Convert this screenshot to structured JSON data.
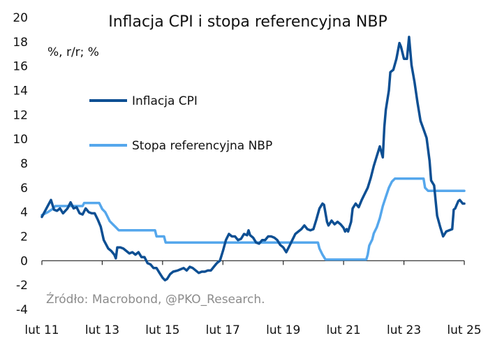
{
  "chart_data": {
    "type": "line",
    "title": "Inflacja CPI i stopa referencyjna NBP",
    "ylabel": "%, r/r; %",
    "xlabel": "",
    "ylim": [
      -4,
      20
    ],
    "yticks": [
      -4,
      -2,
      0,
      2,
      4,
      6,
      8,
      10,
      12,
      14,
      16,
      18,
      20
    ],
    "xlim": [
      2011.0,
      2025.0
    ],
    "xticks": [
      {
        "value": 2011,
        "label": "lut 11"
      },
      {
        "value": 2013,
        "label": "lut 13"
      },
      {
        "value": 2015,
        "label": "lut 15"
      },
      {
        "value": 2017,
        "label": "lut 17"
      },
      {
        "value": 2019,
        "label": "lut 19"
      },
      {
        "value": 2021,
        "label": "lut 21"
      },
      {
        "value": 2023,
        "label": "lut 23"
      },
      {
        "value": 2025,
        "label": "lut 25"
      }
    ],
    "legend": {
      "position": "upper-left"
    },
    "source": "Źródło: Macrobond, @PKO_Research.",
    "series": [
      {
        "name": "Inflacja CPI",
        "color": "#0d4f93",
        "points": [
          [
            2011.0,
            3.6
          ],
          [
            2011.15,
            4.3
          ],
          [
            2011.3,
            5.0
          ],
          [
            2011.4,
            4.2
          ],
          [
            2011.5,
            4.1
          ],
          [
            2011.6,
            4.3
          ],
          [
            2011.7,
            3.9
          ],
          [
            2011.85,
            4.3
          ],
          [
            2011.95,
            4.8
          ],
          [
            2012.05,
            4.3
          ],
          [
            2012.15,
            4.4
          ],
          [
            2012.25,
            3.9
          ],
          [
            2012.35,
            3.8
          ],
          [
            2012.45,
            4.3
          ],
          [
            2012.55,
            4.0
          ],
          [
            2012.65,
            3.9
          ],
          [
            2012.75,
            3.9
          ],
          [
            2012.85,
            3.4
          ],
          [
            2012.95,
            2.8
          ],
          [
            2013.05,
            1.7
          ],
          [
            2013.2,
            1.0
          ],
          [
            2013.3,
            0.8
          ],
          [
            2013.4,
            0.5
          ],
          [
            2013.45,
            0.2
          ],
          [
            2013.5,
            1.1
          ],
          [
            2013.6,
            1.1
          ],
          [
            2013.7,
            1.0
          ],
          [
            2013.8,
            0.8
          ],
          [
            2013.9,
            0.6
          ],
          [
            2014.0,
            0.7
          ],
          [
            2014.1,
            0.5
          ],
          [
            2014.2,
            0.7
          ],
          [
            2014.3,
            0.3
          ],
          [
            2014.4,
            0.3
          ],
          [
            2014.5,
            -0.2
          ],
          [
            2014.6,
            -0.3
          ],
          [
            2014.7,
            -0.6
          ],
          [
            2014.8,
            -0.6
          ],
          [
            2014.9,
            -1.0
          ],
          [
            2015.0,
            -1.4
          ],
          [
            2015.08,
            -1.6
          ],
          [
            2015.15,
            -1.5
          ],
          [
            2015.25,
            -1.1
          ],
          [
            2015.35,
            -0.9
          ],
          [
            2015.5,
            -0.8
          ],
          [
            2015.6,
            -0.7
          ],
          [
            2015.7,
            -0.6
          ],
          [
            2015.8,
            -0.8
          ],
          [
            2015.9,
            -0.5
          ],
          [
            2016.0,
            -0.6
          ],
          [
            2016.1,
            -0.8
          ],
          [
            2016.2,
            -1.0
          ],
          [
            2016.3,
            -0.9
          ],
          [
            2016.4,
            -0.9
          ],
          [
            2016.5,
            -0.8
          ],
          [
            2016.6,
            -0.8
          ],
          [
            2016.7,
            -0.5
          ],
          [
            2016.8,
            -0.2
          ],
          [
            2016.9,
            0.0
          ],
          [
            2017.0,
            0.8
          ],
          [
            2017.1,
            1.7
          ],
          [
            2017.2,
            2.2
          ],
          [
            2017.3,
            2.0
          ],
          [
            2017.4,
            2.0
          ],
          [
            2017.5,
            1.7
          ],
          [
            2017.6,
            1.8
          ],
          [
            2017.7,
            2.2
          ],
          [
            2017.8,
            2.1
          ],
          [
            2017.85,
            2.5
          ],
          [
            2017.9,
            2.1
          ],
          [
            2018.0,
            1.9
          ],
          [
            2018.1,
            1.5
          ],
          [
            2018.2,
            1.4
          ],
          [
            2018.3,
            1.7
          ],
          [
            2018.4,
            1.7
          ],
          [
            2018.5,
            2.0
          ],
          [
            2018.6,
            2.0
          ],
          [
            2018.7,
            1.9
          ],
          [
            2018.8,
            1.7
          ],
          [
            2018.9,
            1.3
          ],
          [
            2019.0,
            1.1
          ],
          [
            2019.1,
            0.7
          ],
          [
            2019.2,
            1.2
          ],
          [
            2019.3,
            1.7
          ],
          [
            2019.4,
            2.2
          ],
          [
            2019.5,
            2.4
          ],
          [
            2019.6,
            2.6
          ],
          [
            2019.7,
            2.9
          ],
          [
            2019.8,
            2.6
          ],
          [
            2019.9,
            2.5
          ],
          [
            2020.0,
            2.6
          ],
          [
            2020.1,
            3.4
          ],
          [
            2020.2,
            4.3
          ],
          [
            2020.3,
            4.7
          ],
          [
            2020.35,
            4.6
          ],
          [
            2020.45,
            3.2
          ],
          [
            2020.5,
            2.9
          ],
          [
            2020.6,
            3.3
          ],
          [
            2020.7,
            3.0
          ],
          [
            2020.8,
            3.2
          ],
          [
            2020.9,
            3.0
          ],
          [
            2021.0,
            2.7
          ],
          [
            2021.05,
            2.4
          ],
          [
            2021.1,
            2.6
          ],
          [
            2021.15,
            2.4
          ],
          [
            2021.25,
            3.2
          ],
          [
            2021.3,
            4.3
          ],
          [
            2021.4,
            4.7
          ],
          [
            2021.5,
            4.4
          ],
          [
            2021.6,
            5.0
          ],
          [
            2021.7,
            5.5
          ],
          [
            2021.8,
            6.0
          ],
          [
            2021.9,
            6.8
          ],
          [
            2022.0,
            7.8
          ],
          [
            2022.1,
            8.6
          ],
          [
            2022.2,
            9.4
          ],
          [
            2022.3,
            8.5
          ],
          [
            2022.35,
            11.0
          ],
          [
            2022.4,
            12.4
          ],
          [
            2022.5,
            14.0
          ],
          [
            2022.55,
            15.5
          ],
          [
            2022.65,
            15.7
          ],
          [
            2022.75,
            16.6
          ],
          [
            2022.85,
            17.9
          ],
          [
            2022.9,
            17.6
          ],
          [
            2023.0,
            16.6
          ],
          [
            2023.1,
            16.6
          ],
          [
            2023.17,
            18.4
          ],
          [
            2023.25,
            16.1
          ],
          [
            2023.35,
            14.7
          ],
          [
            2023.45,
            13.0
          ],
          [
            2023.55,
            11.5
          ],
          [
            2023.65,
            10.8
          ],
          [
            2023.75,
            10.1
          ],
          [
            2023.85,
            8.2
          ],
          [
            2023.9,
            6.6
          ],
          [
            2024.0,
            6.2
          ],
          [
            2024.1,
            3.7
          ],
          [
            2024.2,
            2.8
          ],
          [
            2024.3,
            2.0
          ],
          [
            2024.4,
            2.4
          ],
          [
            2024.5,
            2.5
          ],
          [
            2024.6,
            2.6
          ],
          [
            2024.65,
            4.2
          ],
          [
            2024.7,
            4.3
          ],
          [
            2024.8,
            4.9
          ],
          [
            2024.85,
            5.0
          ],
          [
            2024.95,
            4.7
          ],
          [
            2025.0,
            4.7
          ]
        ]
      },
      {
        "name": "Stopa referencyjna NBP",
        "color": "#55a7ec",
        "points": [
          [
            2011.0,
            3.75
          ],
          [
            2011.2,
            4.0
          ],
          [
            2011.35,
            4.25
          ],
          [
            2011.45,
            4.5
          ],
          [
            2012.35,
            4.5
          ],
          [
            2012.4,
            4.75
          ],
          [
            2012.9,
            4.75
          ],
          [
            2012.95,
            4.5
          ],
          [
            2013.0,
            4.25
          ],
          [
            2013.1,
            4.0
          ],
          [
            2013.15,
            3.75
          ],
          [
            2013.25,
            3.25
          ],
          [
            2013.35,
            3.0
          ],
          [
            2013.45,
            2.75
          ],
          [
            2013.55,
            2.5
          ],
          [
            2014.75,
            2.5
          ],
          [
            2014.8,
            2.0
          ],
          [
            2015.05,
            2.0
          ],
          [
            2015.1,
            1.5
          ],
          [
            2020.15,
            1.5
          ],
          [
            2020.2,
            1.0
          ],
          [
            2020.3,
            0.5
          ],
          [
            2020.4,
            0.1
          ],
          [
            2021.75,
            0.1
          ],
          [
            2021.8,
            0.5
          ],
          [
            2021.85,
            1.25
          ],
          [
            2021.95,
            1.75
          ],
          [
            2022.0,
            2.25
          ],
          [
            2022.1,
            2.75
          ],
          [
            2022.2,
            3.5
          ],
          [
            2022.3,
            4.5
          ],
          [
            2022.4,
            5.25
          ],
          [
            2022.5,
            6.0
          ],
          [
            2022.6,
            6.5
          ],
          [
            2022.7,
            6.75
          ],
          [
            2023.65,
            6.75
          ],
          [
            2023.7,
            6.0
          ],
          [
            2023.8,
            5.75
          ],
          [
            2025.0,
            5.75
          ]
        ]
      }
    ]
  }
}
